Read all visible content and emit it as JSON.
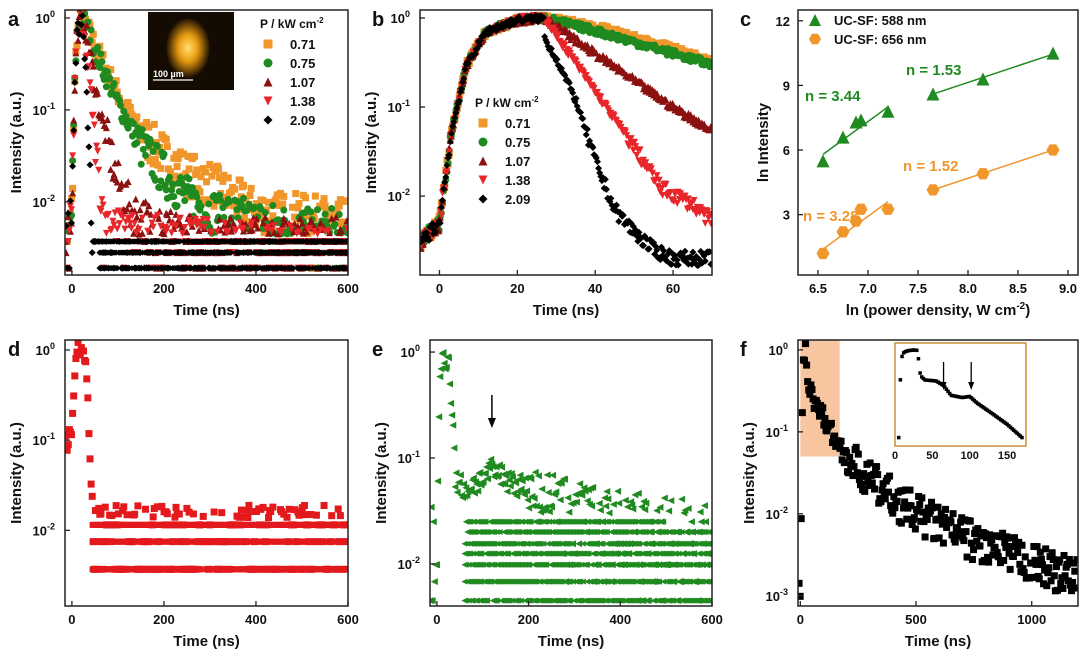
{
  "chart_data": [
    {
      "id": "a",
      "panel_label": "a",
      "type": "scatter",
      "xlabel": "Time (ns)",
      "ylabel": "Intensity (a.u.)",
      "xlim": [
        -15,
        600
      ],
      "xticks": [
        0,
        200,
        400,
        600
      ],
      "yscale": "log",
      "ylim": [
        0.0016,
        1.22
      ],
      "yticks_exp": [
        0,
        -1,
        -2
      ],
      "legend_title": "P / kW cm",
      "legend_title_sup": "-2",
      "legend_position": "top-right",
      "inset_image_scale": "100 µm",
      "rise": [
        [
          -15,
          0.003
        ],
        [
          0,
          0.008
        ],
        [
          5,
          0.12
        ],
        [
          10,
          0.6
        ],
        [
          18,
          1
        ]
      ],
      "series": [
        {
          "name": "0.71",
          "color": "#f0962a",
          "marker": "square",
          "decay": [
            [
              25,
              1
            ],
            [
              50,
              0.5
            ],
            [
              100,
              0.15
            ],
            [
              150,
              0.055
            ],
            [
              200,
              0.032
            ],
            [
              250,
              0.02
            ],
            [
              300,
              0.016
            ],
            [
              350,
              0.011
            ],
            [
              400,
              0.008
            ],
            [
              500,
              0.007
            ],
            [
              600,
              0.006
            ]
          ]
        },
        {
          "name": "0.75",
          "color": "#1f8a1f",
          "marker": "circle",
          "decay": [
            [
              25,
              1
            ],
            [
              50,
              0.45
            ],
            [
              100,
              0.12
            ],
            [
              150,
              0.04
            ],
            [
              200,
              0.02
            ],
            [
              250,
              0.011
            ],
            [
              300,
              0.008
            ],
            [
              400,
              0.006
            ],
            [
              500,
              0.005
            ],
            [
              600,
              0.005
            ]
          ]
        },
        {
          "name": "1.07",
          "color": "#8b1010",
          "marker": "triangle-up",
          "decay": [
            [
              25,
              1
            ],
            [
              40,
              0.4
            ],
            [
              60,
              0.1
            ],
            [
              80,
              0.04
            ],
            [
              100,
              0.016
            ],
            [
              130,
              0.008
            ],
            [
              200,
              0.005
            ],
            [
              300,
              0.004
            ],
            [
              600,
              0.004
            ]
          ]
        },
        {
          "name": "1.38",
          "color": "#e8262a",
          "marker": "triangle-down",
          "decay": [
            [
              22,
              0.8
            ],
            [
              35,
              0.3
            ],
            [
              50,
              0.05
            ],
            [
              60,
              0.015
            ],
            [
              70,
              0.007
            ],
            [
              100,
              0.005
            ],
            [
              200,
              0.004
            ],
            [
              600,
              0.003
            ]
          ]
        },
        {
          "name": "2.09",
          "color": "#000000",
          "marker": "diamond",
          "decay": [
            [
              22,
              1
            ],
            [
              30,
              0.3
            ],
            [
              38,
              0.03
            ],
            [
              45,
              0.004
            ],
            [
              60,
              0.002
            ],
            [
              600,
              0.002
            ]
          ]
        }
      ],
      "noise_floor_levels": [
        0.0019,
        0.0028,
        0.0037
      ]
    },
    {
      "id": "b",
      "panel_label": "b",
      "type": "scatter",
      "xlabel": "Time (ns)",
      "ylabel": "Intensity (a.u.)",
      "xlim": [
        -5,
        70
      ],
      "xticks": [
        0,
        20,
        40,
        60
      ],
      "yscale": "log",
      "ylim": [
        0.0013,
        1.23
      ],
      "yticks_exp": [
        0,
        -1,
        -2
      ],
      "legend_title": "P / kW cm",
      "legend_title_sup": "-2",
      "legend_position": "center-left",
      "rise": [
        [
          -5,
          0.003
        ],
        [
          0,
          0.005
        ],
        [
          3,
          0.05
        ],
        [
          7,
          0.3
        ],
        [
          12,
          0.7
        ],
        [
          20,
          0.95
        ],
        [
          27,
          1
        ]
      ],
      "series": [
        {
          "name": "0.71",
          "color": "#f0962a",
          "marker": "square",
          "decay": [
            [
              27,
              1
            ],
            [
              40,
              0.8
            ],
            [
              60,
              0.45
            ],
            [
              70,
              0.32
            ]
          ]
        },
        {
          "name": "0.75",
          "color": "#1f8a1f",
          "marker": "circle",
          "decay": [
            [
              27,
              1
            ],
            [
              40,
              0.72
            ],
            [
              60,
              0.4
            ],
            [
              70,
              0.3
            ]
          ]
        },
        {
          "name": "1.07",
          "color": "#8b1010",
          "marker": "triangle-up",
          "decay": [
            [
              27,
              1
            ],
            [
              40,
              0.4
            ],
            [
              60,
              0.1
            ],
            [
              70,
              0.055
            ]
          ]
        },
        {
          "name": "1.38",
          "color": "#e8262a",
          "marker": "triangle-down",
          "decay": [
            [
              27,
              1
            ],
            [
              40,
              0.15
            ],
            [
              50,
              0.035
            ],
            [
              57,
              0.012
            ],
            [
              65,
              0.008
            ],
            [
              70,
              0.005
            ]
          ]
        },
        {
          "name": "2.09",
          "color": "#000000",
          "marker": "diamond",
          "decay": [
            [
              24,
              1
            ],
            [
              30,
              0.35
            ],
            [
              35,
              0.12
            ],
            [
              40,
              0.025
            ],
            [
              45,
              0.007
            ],
            [
              50,
              0.004
            ],
            [
              55,
              0.0025
            ],
            [
              60,
              0.002
            ]
          ]
        }
      ]
    },
    {
      "id": "c",
      "panel_label": "c",
      "type": "scatter",
      "xlabel": "ln (power density, W cm",
      "xlabel_sup": "-2",
      "xlabel_end": ")",
      "ylabel": "ln Intensity",
      "xlim": [
        6.3,
        9.1
      ],
      "xticks": [
        6.5,
        7.0,
        7.5,
        8.0,
        8.5,
        9.0
      ],
      "yscale": "linear",
      "ylim": [
        0.2,
        12.5
      ],
      "yticks": [
        3,
        6,
        9,
        12
      ],
      "legend_position": "top-left",
      "series": [
        {
          "name": "UC-SF: 588 nm",
          "color": "#1f8a1f",
          "marker": "triangle-up",
          "x": [
            6.55,
            6.75,
            6.88,
            6.93,
            7.2,
            7.65,
            8.15,
            8.85
          ],
          "y": [
            5.5,
            6.6,
            7.3,
            7.4,
            7.8,
            8.6,
            9.3,
            10.5
          ],
          "fits": [
            {
              "label": "n = 3.44",
              "x": [
                6.55,
                7.2
              ],
              "y": [
                5.8,
                8.0
              ]
            },
            {
              "label": "n = 1.53",
              "x": [
                7.65,
                8.85
              ],
              "y": [
                8.6,
                10.45
              ]
            }
          ]
        },
        {
          "name": "UC-SF: 656 nm",
          "color": "#f0962a",
          "marker": "hexagon",
          "x": [
            6.55,
            6.75,
            6.88,
            6.93,
            7.2,
            7.65,
            8.15,
            8.85
          ],
          "y": [
            1.2,
            2.2,
            2.7,
            3.25,
            3.25,
            4.15,
            4.9,
            6.0
          ],
          "fits": [
            {
              "label": "n = 3.28",
              "x": [
                6.55,
                7.2
              ],
              "y": [
                1.4,
                3.6
              ]
            },
            {
              "label": "n = 1.52",
              "x": [
                7.65,
                8.85
              ],
              "y": [
                4.15,
                6.0
              ]
            }
          ]
        }
      ]
    },
    {
      "id": "d",
      "panel_label": "d",
      "type": "scatter",
      "xlabel": "Time (ns)",
      "ylabel": "Intensity (a.u.)",
      "xlim": [
        -15,
        600
      ],
      "xticks": [
        0,
        200,
        400,
        600
      ],
      "yscale": "log",
      "ylim": [
        0.00145,
        1.29
      ],
      "yticks_exp": [
        0,
        -1,
        -2
      ],
      "rise": [
        [
          0,
          0.1
        ],
        [
          5,
          0.5
        ],
        [
          10,
          0.9
        ]
      ],
      "series": [
        {
          "name": "d",
          "color": "#e3191c",
          "marker": "square",
          "decay": [
            [
              10,
              0.95
            ],
            [
              30,
              0.9
            ],
            [
              35,
              0.3
            ],
            [
              40,
              0.05
            ],
            [
              45,
              0.011
            ]
          ]
        }
      ],
      "noise_floor_levels": [
        0.0037,
        0.0075,
        0.0115
      ]
    },
    {
      "id": "e",
      "panel_label": "e",
      "type": "scatter",
      "xlabel": "Time (ns)",
      "ylabel": "Intensity (a.u.)",
      "xlim": [
        -15,
        600
      ],
      "xticks": [
        0,
        200,
        400,
        600
      ],
      "yscale": "log",
      "ylim": [
        0.004,
        1.3
      ],
      "yticks_exp": [
        0,
        -1,
        -2
      ],
      "annotation": "arrow at ~120 ns",
      "rise": [
        [
          0,
          0.02
        ],
        [
          5,
          0.4
        ],
        [
          10,
          0.9
        ]
      ],
      "series": [
        {
          "name": "e",
          "color": "#1f8a1f",
          "marker": "triangle-left",
          "decay": [
            [
              12,
              0.95
            ],
            [
              25,
              0.85
            ],
            [
              32,
              0.3
            ],
            [
              40,
              0.06
            ],
            [
              60,
              0.05
            ],
            [
              120,
              0.075
            ],
            [
              200,
              0.05
            ],
            [
              300,
              0.035
            ],
            [
              400,
              0.028
            ],
            [
              600,
              0.022
            ]
          ]
        }
      ],
      "noise_floor_levels": [
        0.0045,
        0.0068,
        0.0098,
        0.0125,
        0.0155,
        0.02,
        0.025
      ]
    },
    {
      "id": "f",
      "panel_label": "f",
      "type": "scatter",
      "xlabel": "Time (ns)",
      "ylabel": "Intensity (a.u.)",
      "xlim": [
        -10,
        1200
      ],
      "xticks": [
        0,
        500,
        1000
      ],
      "yscale": "log",
      "ylim": [
        0.00075,
        1.32
      ],
      "yticks_exp": [
        0,
        -1,
        -2,
        -3
      ],
      "highlight_region_x": [
        0,
        170
      ],
      "highlight_color": "#f7c59f",
      "rise": [
        [
          0,
          0.0009
        ],
        [
          10,
          0.5
        ],
        [
          20,
          0.9
        ]
      ],
      "series": [
        {
          "name": "f",
          "color": "#000000",
          "marker": "square",
          "decay": [
            [
              25,
              1
            ],
            [
              35,
              0.4
            ],
            [
              60,
              0.25
            ],
            [
              100,
              0.15
            ],
            [
              150,
              0.08
            ],
            [
              200,
              0.05
            ],
            [
              300,
              0.025
            ],
            [
              500,
              0.01
            ],
            [
              800,
              0.004
            ],
            [
              1000,
              0.0025
            ],
            [
              1200,
              0.0016
            ]
          ]
        }
      ],
      "inset": {
        "xlim": [
          0,
          170
        ],
        "xticks": [
          0,
          50,
          100,
          150
        ],
        "frame_color": "#c8913a",
        "arrows_x": [
          65,
          102
        ],
        "points": [
          [
            5,
            0.01
          ],
          [
            8,
            0.6
          ],
          [
            12,
            0.85
          ],
          [
            18,
            0.92
          ],
          [
            25,
            0.95
          ],
          [
            30,
            0.93
          ],
          [
            32,
            0.5
          ],
          [
            34,
            0.25
          ],
          [
            40,
            0.2
          ],
          [
            55,
            0.19
          ],
          [
            65,
            0.15
          ],
          [
            75,
            0.09
          ],
          [
            90,
            0.08
          ],
          [
            100,
            0.085
          ],
          [
            110,
            0.06
          ],
          [
            130,
            0.035
          ],
          [
            150,
            0.02
          ],
          [
            170,
            0.01
          ]
        ]
      }
    }
  ]
}
